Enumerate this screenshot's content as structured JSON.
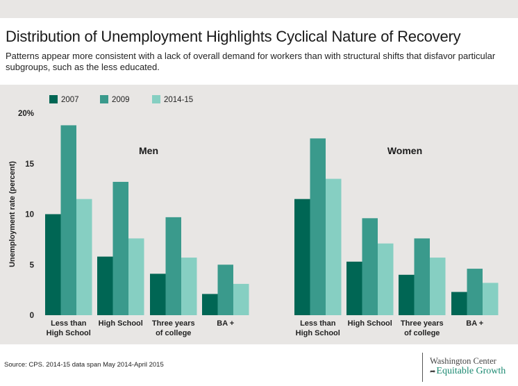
{
  "title": "Distribution of Unemployment Highlights Cyclical Nature of Recovery",
  "subtitle": "Patterns appear more consistent with a lack of overall demand for workers than with structural shifts that disfavor particular subgroups, such as the less educated.",
  "source": "Source: CPS. 2014-15 data span May 2014-April 2015",
  "logo": {
    "top": "Washington Center",
    "bottom": "Equitable Growth"
  },
  "colors": {
    "2007": "#006654",
    "2009": "#3a9a8c",
    "2014-15": "#86cfc2",
    "panel": "#e8e6e4"
  },
  "chart_data": {
    "type": "bar",
    "ylabel": "Unemployment rate (percent)",
    "ylim": [
      0,
      20
    ],
    "yticks": [
      0,
      5,
      10,
      15,
      20
    ],
    "ytick_labels": [
      "0",
      "5",
      "10",
      "15",
      "20%"
    ],
    "grid": false,
    "legend": {
      "position": "top-left",
      "entries": [
        "2007",
        "2009",
        "2014-15"
      ]
    },
    "categories": [
      "Less than High School",
      "High School",
      "Three years of college",
      "BA +"
    ],
    "category_label_lines": [
      [
        "Less than",
        "High School"
      ],
      [
        "High School"
      ],
      [
        "Three years",
        "of college"
      ],
      [
        "BA +"
      ]
    ],
    "groups": [
      {
        "name": "Men",
        "series": [
          {
            "name": "2007",
            "values": [
              10.0,
              5.8,
              4.1,
              2.1
            ]
          },
          {
            "name": "2009",
            "values": [
              18.8,
              13.2,
              9.7,
              5.0
            ]
          },
          {
            "name": "2014-15",
            "values": [
              11.5,
              7.6,
              5.7,
              3.1
            ]
          }
        ]
      },
      {
        "name": "Women",
        "series": [
          {
            "name": "2007",
            "values": [
              11.5,
              5.3,
              4.0,
              2.3
            ]
          },
          {
            "name": "2009",
            "values": [
              17.5,
              9.6,
              7.6,
              4.6
            ]
          },
          {
            "name": "2014-15",
            "values": [
              13.5,
              7.1,
              5.7,
              3.2
            ]
          }
        ]
      }
    ]
  }
}
